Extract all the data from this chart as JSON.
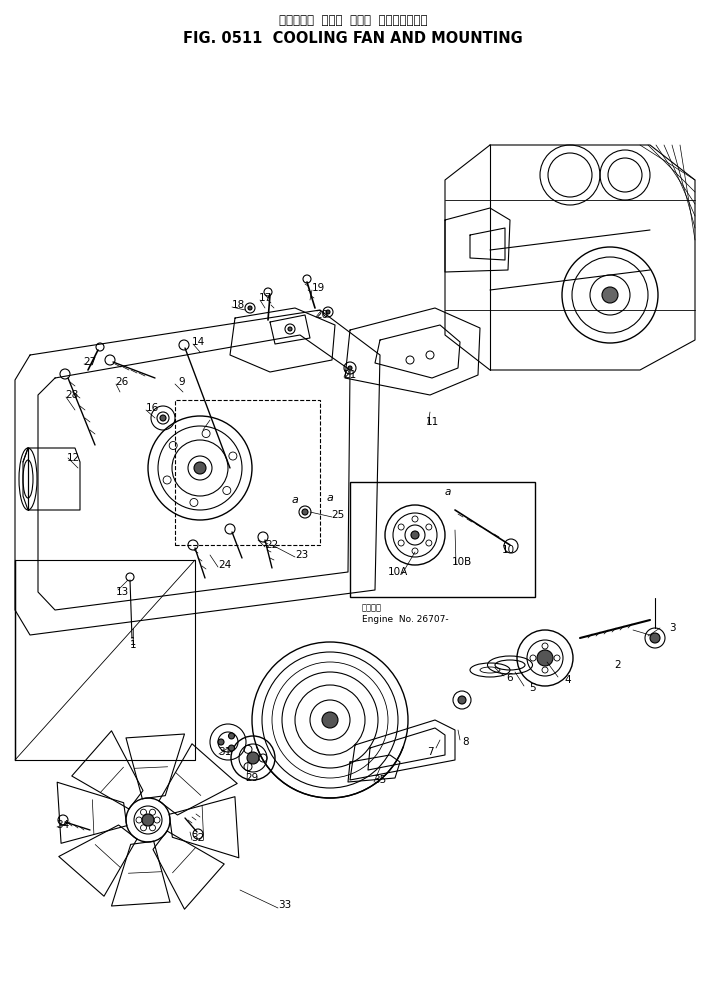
{
  "title_japanese": "クーリング  ファン  および  マウンティング",
  "title_english": "FIG. 0511  COOLING FAN AND MOUNTING",
  "bg": "#ffffff",
  "lc": "#000000",
  "engine_note_jp": "適用番号",
  "engine_note_en": "Engine  No. 26707-"
}
